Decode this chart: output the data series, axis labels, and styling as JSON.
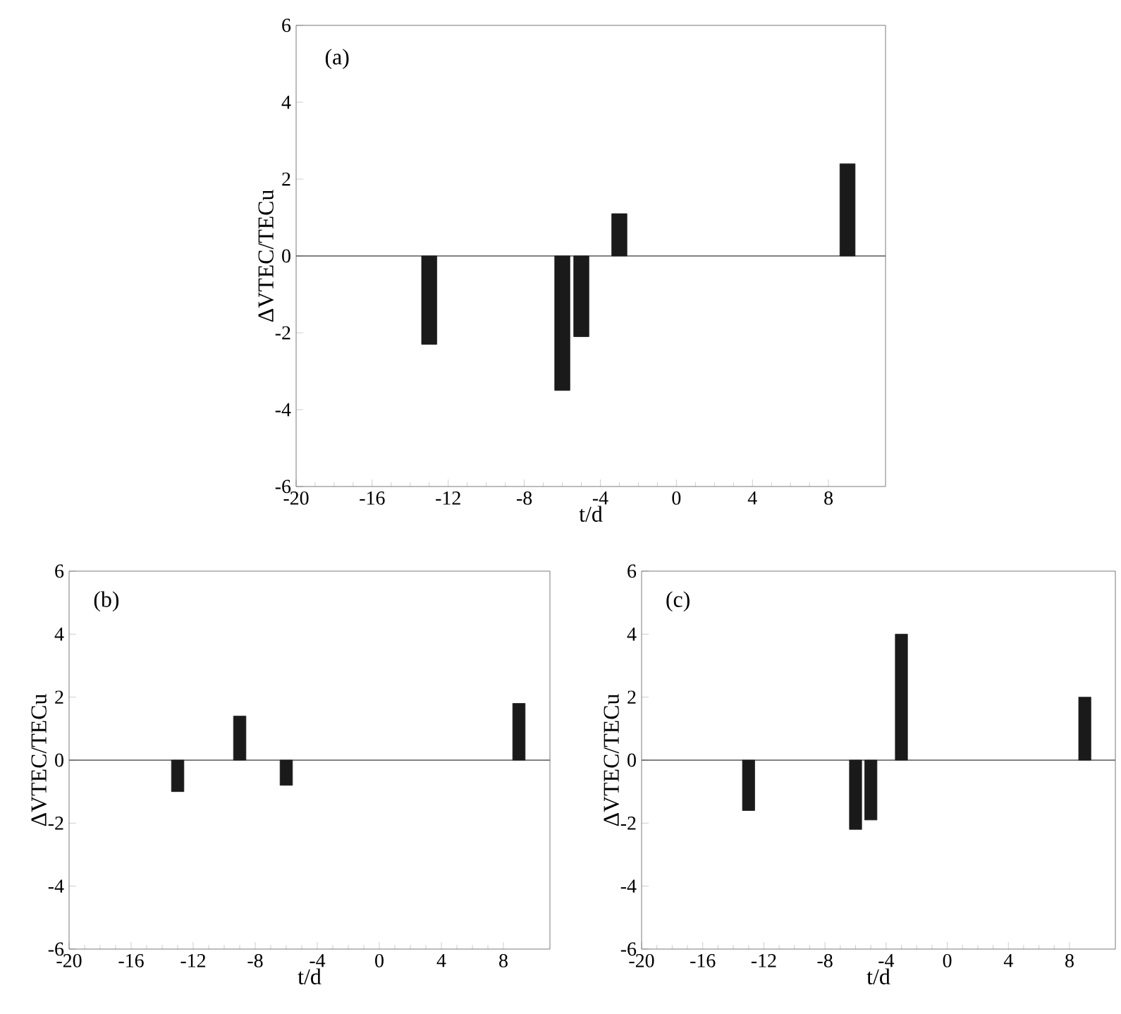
{
  "chart_data": [
    {
      "type": "bar",
      "x": [
        -13,
        -6,
        -5,
        -3,
        9
      ],
      "values": [
        -2.3,
        -3.5,
        -2.1,
        1.1,
        2.4
      ],
      "color": "#1a1a1a",
      "xlim": [
        -20,
        11
      ],
      "xticks": [
        -20,
        -16,
        -12,
        -8,
        -4,
        0,
        4,
        8
      ],
      "ylim": [
        -6,
        6
      ],
      "yticks": [
        -6,
        -4,
        -2,
        0,
        2,
        4,
        6
      ],
      "xlabel": "t/d",
      "ylabel": "ΔVTEC/TECu",
      "annotations": [
        "(a)"
      ],
      "ref_lines": [
        {
          "axis": "y",
          "value": 0
        }
      ]
    },
    {
      "type": "bar",
      "x": [
        -13,
        -9,
        -6,
        9
      ],
      "values": [
        -1.0,
        1.4,
        -0.8,
        1.8
      ],
      "color": "#1a1a1a",
      "xlim": [
        -20,
        11
      ],
      "xticks": [
        -20,
        -16,
        -12,
        -8,
        -4,
        0,
        4,
        8
      ],
      "ylim": [
        -6,
        6
      ],
      "yticks": [
        -6,
        -4,
        -2,
        0,
        2,
        4,
        6
      ],
      "xlabel": "t/d",
      "ylabel": "ΔVTEC/TECu",
      "annotations": [
        "(b)"
      ],
      "ref_lines": [
        {
          "axis": "y",
          "value": 0
        }
      ]
    },
    {
      "type": "bar",
      "x": [
        -13,
        -6,
        -5,
        -3,
        9
      ],
      "values": [
        -1.6,
        -2.2,
        -1.9,
        4.0,
        2.0
      ],
      "color": "#1a1a1a",
      "xlim": [
        -20,
        11
      ],
      "xticks": [
        -20,
        -16,
        -12,
        -8,
        -4,
        0,
        4,
        8
      ],
      "ylim": [
        -6,
        6
      ],
      "yticks": [
        -6,
        -4,
        -2,
        0,
        2,
        4,
        6
      ],
      "xlabel": "t/d",
      "ylabel": "ΔVTEC/TECu",
      "annotations": [
        "(c)"
      ],
      "ref_lines": [
        {
          "axis": "y",
          "value": 0
        }
      ]
    }
  ]
}
